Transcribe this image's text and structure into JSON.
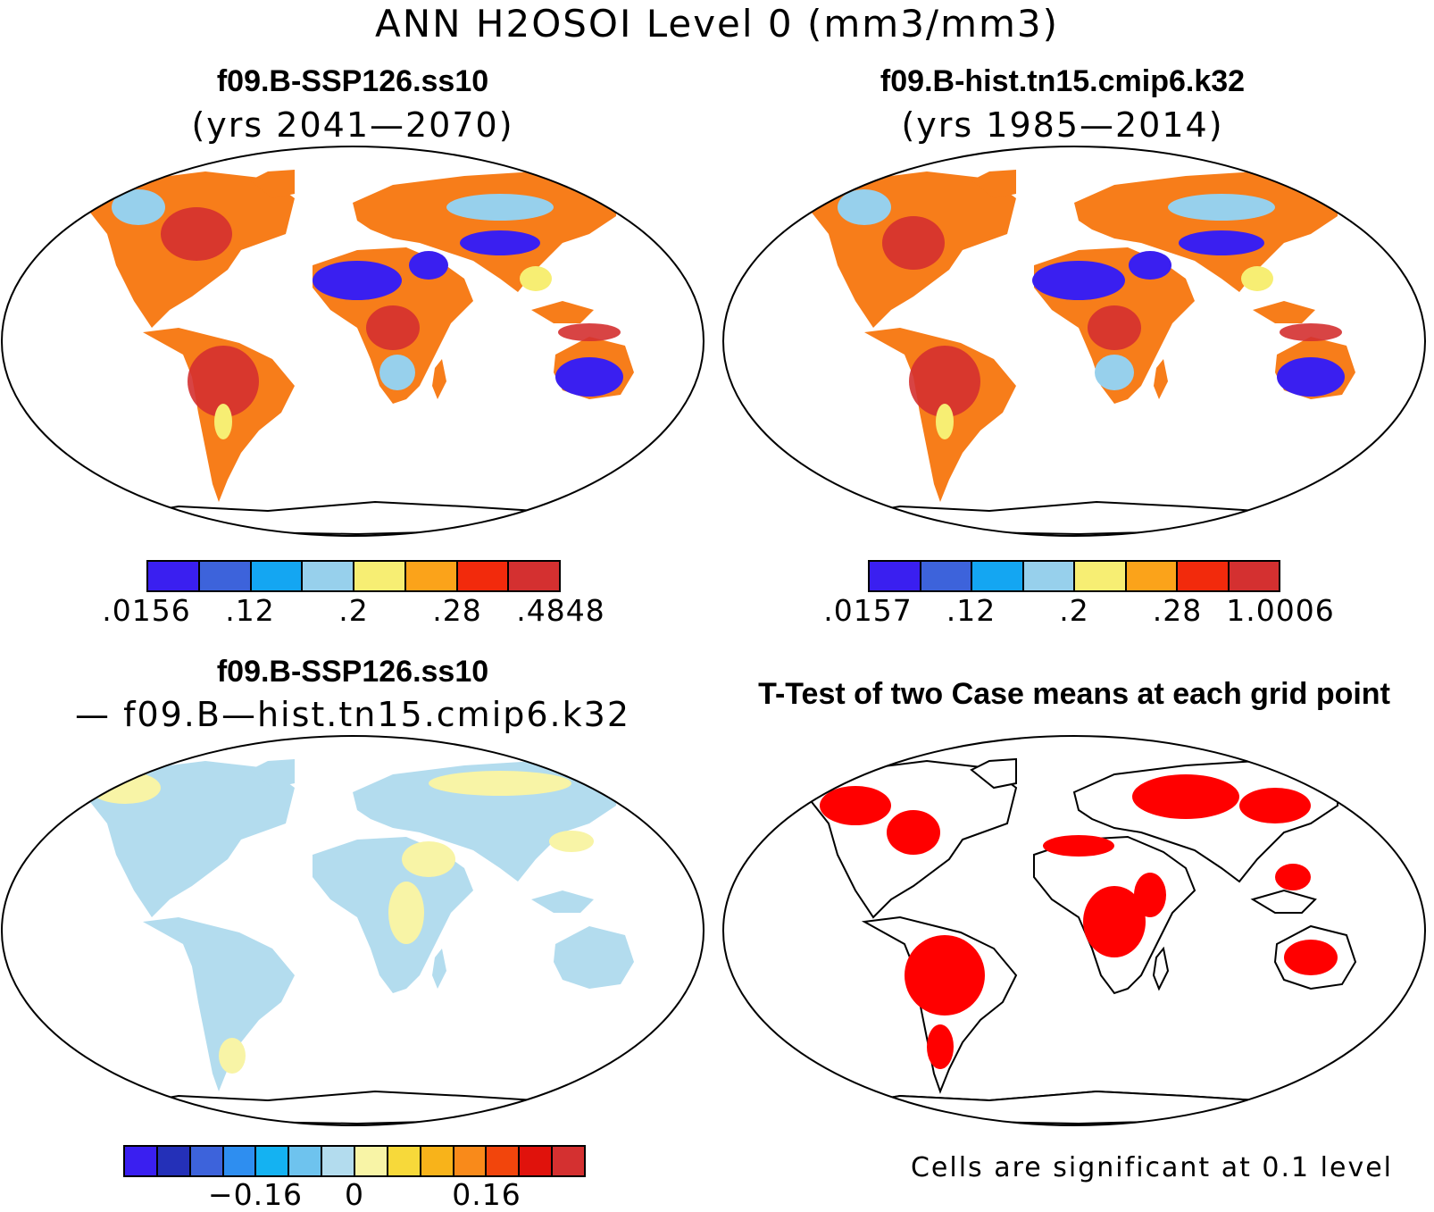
{
  "title": "ANN H2OSOI Level 0 (mm3/mm3)",
  "panels": [
    {
      "name": "f09.B-SSP126.ss10",
      "subtitle": "(yrs 2041—2070)",
      "colorbar": {
        "colors": [
          "#3a1ff0",
          "#3d63db",
          "#14a6f2",
          "#97d0ec",
          "#f7ee73",
          "#fba31a",
          "#f22a0c",
          "#d43030"
        ],
        "tick_labels": [
          ".0156",
          ".12",
          ".2",
          ".28",
          ".4848"
        ]
      }
    },
    {
      "name": "f09.B-hist.tn15.cmip6.k32",
      "subtitle": "(yrs 1985—2014)",
      "colorbar": {
        "colors": [
          "#3a1ff0",
          "#3d63db",
          "#14a6f2",
          "#97d0ec",
          "#f7ee73",
          "#fba31a",
          "#f22a0c",
          "#d43030"
        ],
        "tick_labels": [
          ".0157",
          ".12",
          ".2",
          ".28",
          "1.0006"
        ]
      }
    },
    {
      "name": "f09.B-SSP126.ss10",
      "subtitle": "— f09.B—hist.tn15.cmip6.k32",
      "colorbar": {
        "colors": [
          "#3a1ff0",
          "#2430b8",
          "#3d63db",
          "#2e8ef0",
          "#14b2f2",
          "#6ec3ee",
          "#b3dcee",
          "#f8f4a6",
          "#f7d93a",
          "#f8b31a",
          "#f98a1a",
          "#f2450c",
          "#e0120c",
          "#d43030"
        ],
        "tick_labels": [
          "−0.16",
          "0",
          "0.16"
        ]
      }
    },
    {
      "name": "T-Test of two Case means at each grid point",
      "note": "Cells are significant at 0.1 level"
    }
  ],
  "fill_colors": {
    "ocean": "#ffffff",
    "difference_land": "#b3dcee",
    "difference_positive": "#f8f4a6",
    "significant": "#ff0000"
  }
}
